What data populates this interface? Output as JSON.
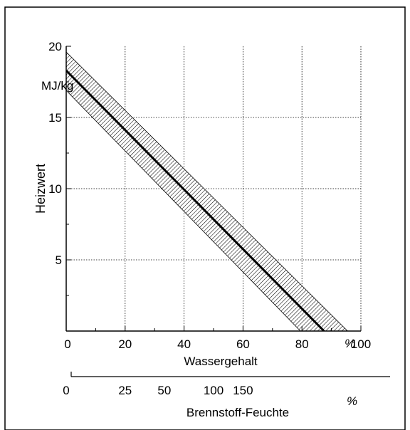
{
  "chart_data": {
    "type": "line",
    "ylabel": "Heizwert",
    "yunit": "MJ/kg",
    "xlabel": "Wassergehalt",
    "xunit": "%",
    "xlim": [
      0,
      100
    ],
    "ylim": [
      0,
      20
    ],
    "x_ticks": [
      "0",
      "20",
      "40",
      "60",
      "80",
      "100"
    ],
    "y_ticks": [
      "5",
      "10",
      "15",
      "20"
    ],
    "grid": true,
    "series": [
      {
        "x": [
          0,
          87.5
        ],
        "y": [
          18.3,
          0
        ]
      }
    ],
    "band": {
      "upper": {
        "x": [
          0,
          95.5
        ],
        "y": [
          19.6,
          0
        ]
      },
      "lower": {
        "x": [
          0,
          79.5
        ],
        "y": [
          16.9,
          0
        ]
      }
    },
    "secondary_axis": {
      "label": "Brennstoff-Feuchte",
      "unit": "%",
      "ticks": [
        {
          "label": "0",
          "at_wassergehalt": 0
        },
        {
          "label": "25",
          "at_wassergehalt": 20
        },
        {
          "label": "50",
          "at_wassergehalt": 33.3
        },
        {
          "label": "100",
          "at_wassergehalt": 50
        },
        {
          "label": "150",
          "at_wassergehalt": 60
        }
      ]
    }
  }
}
